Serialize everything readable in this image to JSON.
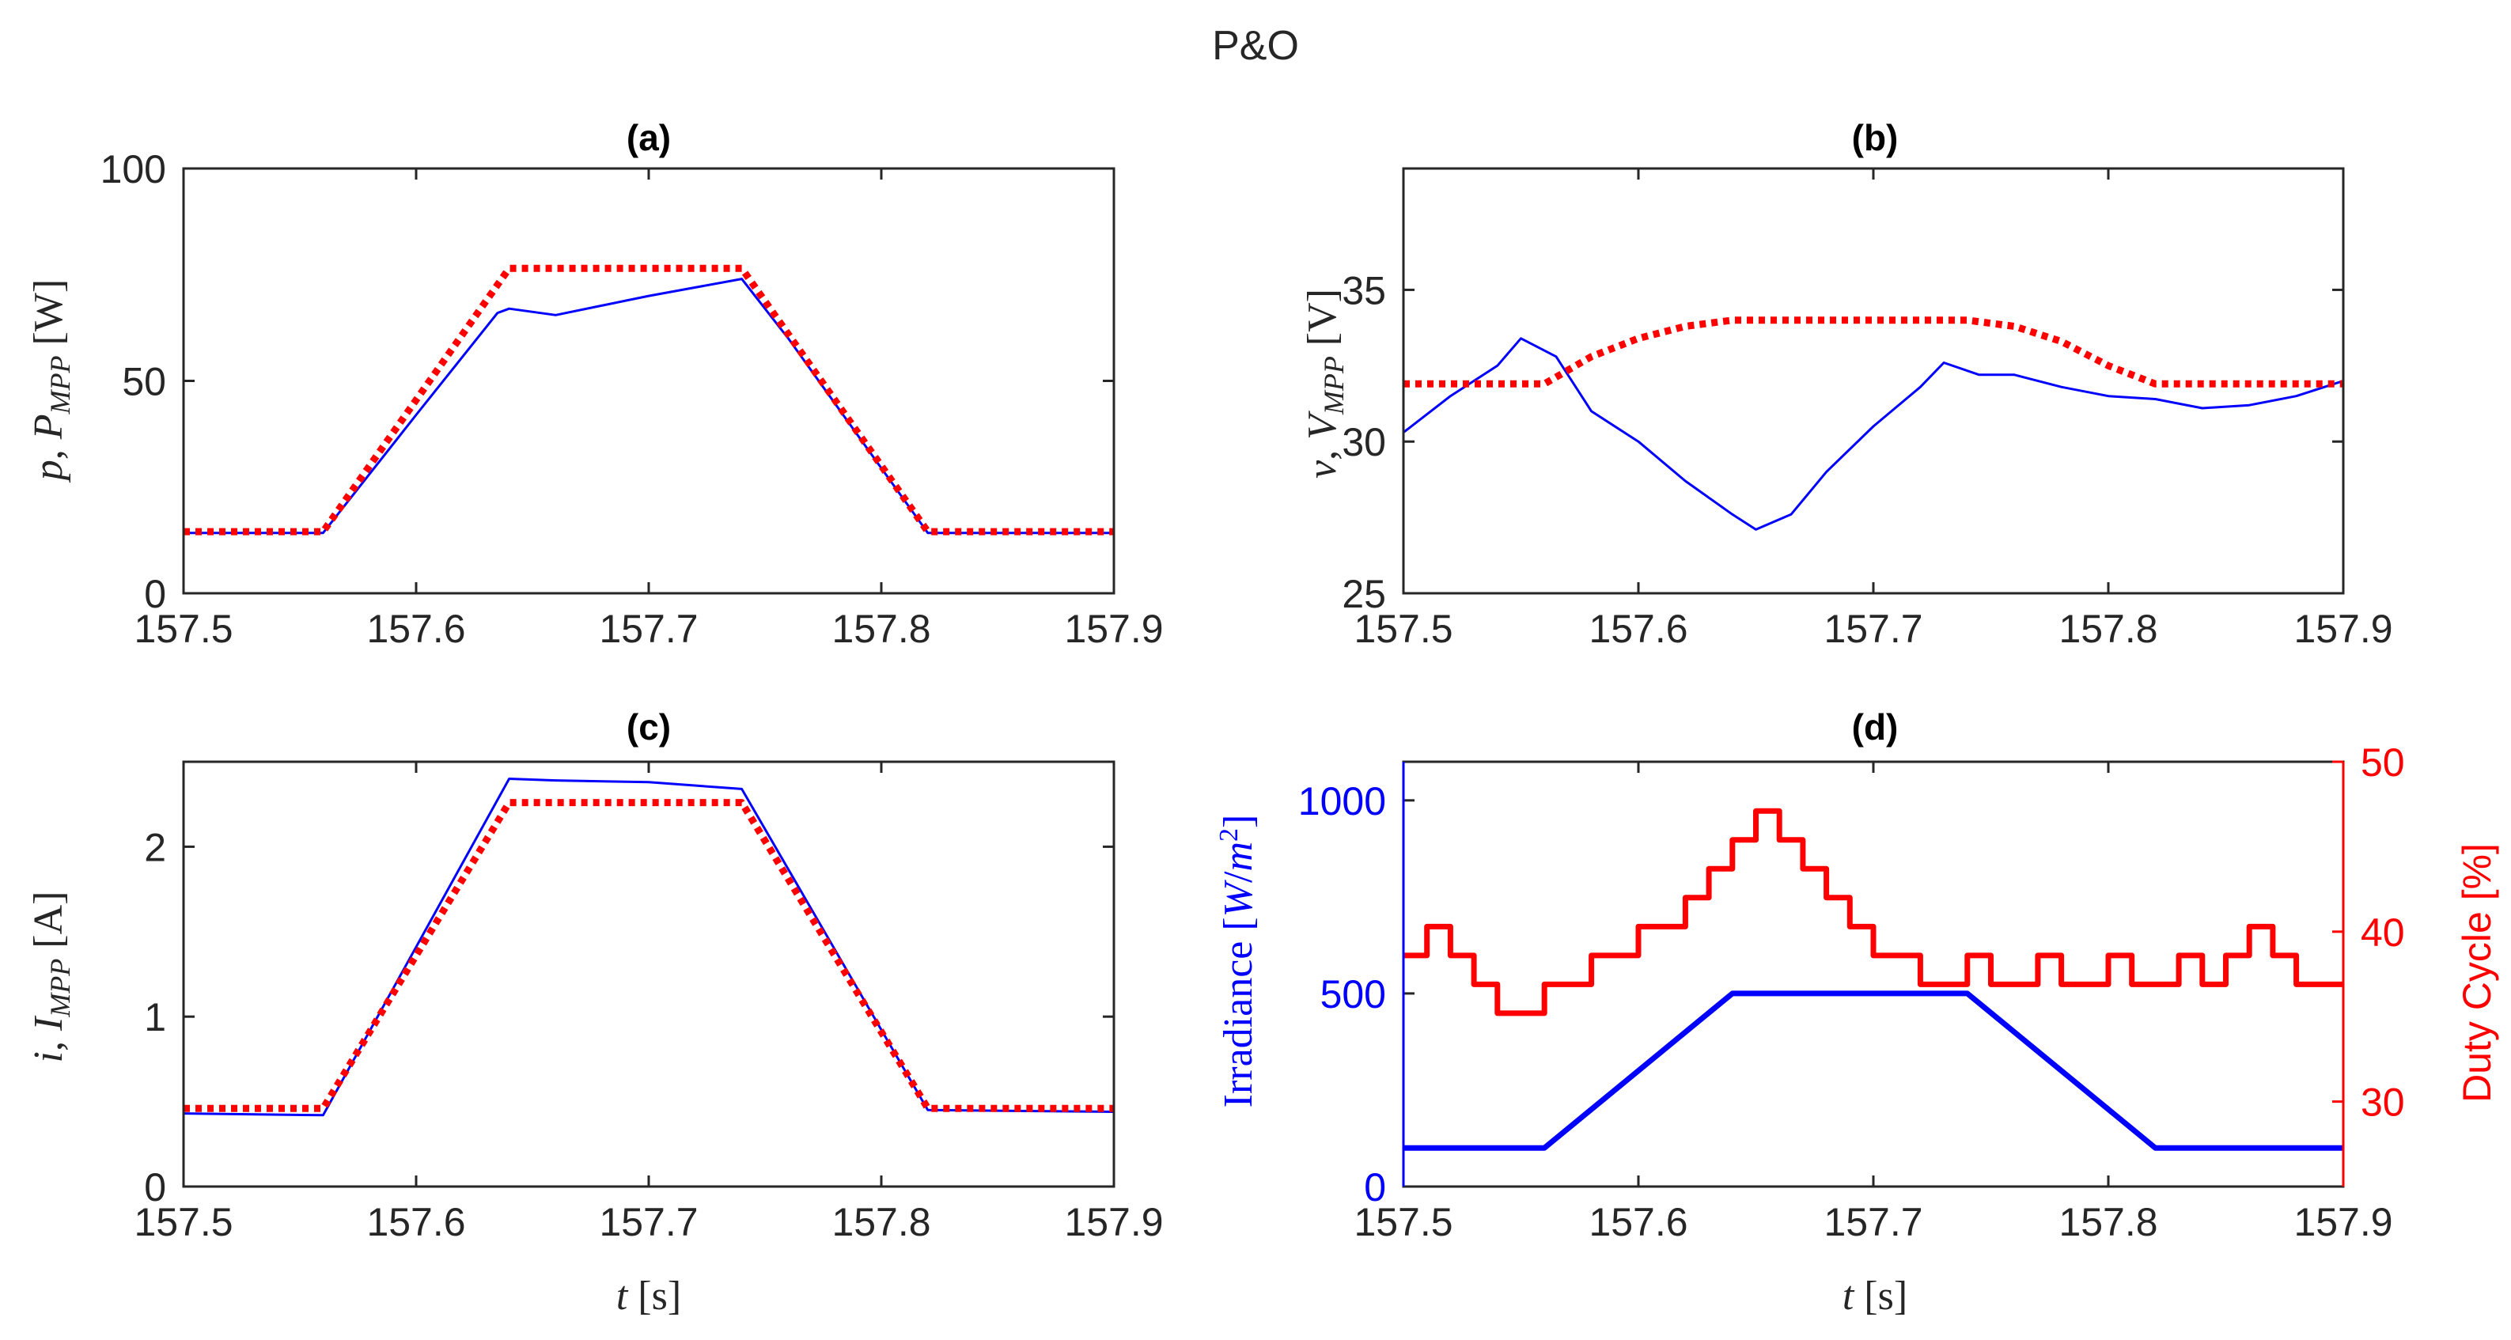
{
  "figure_title": "P&O",
  "colors": {
    "measured": "#0000ff",
    "mpp": "#ff0000",
    "axis": "#262626"
  },
  "chart_data": [
    {
      "panel": "(a)",
      "type": "line",
      "title": "(a)",
      "ylabel": "p, P_MPP [W]",
      "xlabel": "",
      "xlim": [
        157.5,
        157.9
      ],
      "ylim": [
        0,
        100
      ],
      "xticks": [
        157.5,
        157.6,
        157.7,
        157.8,
        157.9
      ],
      "yticks": [
        0,
        50,
        100
      ],
      "series": [
        {
          "name": "p",
          "color": "#0000ff",
          "x": [
            157.5,
            157.56,
            157.6,
            157.635,
            157.64,
            157.66,
            157.7,
            157.74,
            157.76,
            157.82,
            157.9
          ],
          "y": [
            14.2,
            14.2,
            42,
            66,
            67,
            65.5,
            70,
            74,
            60,
            14.2,
            14.2
          ]
        },
        {
          "name": "P_MPP",
          "color": "#ff0000",
          "dashed": true,
          "x": [
            157.5,
            157.56,
            157.64,
            157.74,
            157.82,
            157.9
          ],
          "y": [
            14.5,
            14.5,
            76.5,
            76.5,
            14.5,
            14.5
          ]
        }
      ]
    },
    {
      "panel": "(b)",
      "type": "line",
      "title": "(b)",
      "ylabel": "v, V_MPP [V]",
      "xlabel": "",
      "xlim": [
        157.5,
        157.9
      ],
      "ylim": [
        25,
        39
      ],
      "xticks": [
        157.5,
        157.6,
        157.7,
        157.8,
        157.9
      ],
      "yticks": [
        25,
        30,
        35
      ],
      "series": [
        {
          "name": "v",
          "color": "#0000ff",
          "x": [
            157.5,
            157.52,
            157.54,
            157.55,
            157.565,
            157.58,
            157.6,
            157.62,
            157.64,
            157.65,
            157.665,
            157.68,
            157.7,
            157.72,
            157.73,
            157.745,
            157.76,
            157.78,
            157.8,
            157.82,
            157.84,
            157.86,
            157.88,
            157.9
          ],
          "y": [
            30.3,
            31.5,
            32.5,
            33.4,
            32.8,
            31.0,
            30.0,
            28.7,
            27.6,
            27.1,
            27.6,
            29.0,
            30.5,
            31.8,
            32.6,
            32.2,
            32.2,
            31.8,
            31.5,
            31.4,
            31.1,
            31.2,
            31.5,
            32.0
          ]
        },
        {
          "name": "V_MPP",
          "color": "#ff0000",
          "dashed": true,
          "x": [
            157.5,
            157.56,
            157.58,
            157.6,
            157.62,
            157.64,
            157.7,
            157.74,
            157.76,
            157.78,
            157.8,
            157.82,
            157.9
          ],
          "y": [
            31.9,
            31.9,
            32.8,
            33.4,
            33.8,
            34.0,
            34.0,
            34.0,
            33.8,
            33.3,
            32.5,
            31.9,
            31.9
          ]
        }
      ]
    },
    {
      "panel": "(c)",
      "type": "line",
      "title": "(c)",
      "ylabel": "i, I_MPP [A]",
      "xlabel": "t [s]",
      "xlim": [
        157.5,
        157.9
      ],
      "ylim": [
        0,
        2.5
      ],
      "xticks": [
        157.5,
        157.6,
        157.7,
        157.8,
        157.9
      ],
      "yticks": [
        0,
        1,
        2
      ],
      "series": [
        {
          "name": "i",
          "color": "#0000ff",
          "x": [
            157.5,
            157.56,
            157.64,
            157.66,
            157.7,
            157.74,
            157.82,
            157.9
          ],
          "y": [
            0.43,
            0.42,
            2.4,
            2.39,
            2.38,
            2.34,
            0.45,
            0.44
          ]
        },
        {
          "name": "I_MPP",
          "color": "#ff0000",
          "dashed": true,
          "x": [
            157.5,
            157.56,
            157.64,
            157.74,
            157.82,
            157.9
          ],
          "y": [
            0.46,
            0.46,
            2.26,
            2.26,
            0.46,
            0.46
          ]
        }
      ]
    },
    {
      "panel": "(d)",
      "type": "line",
      "title": "(d)",
      "ylabel": "Irradiance [W/m^2]",
      "y2label": "Duty Cycle [%]",
      "xlabel": "t [s]",
      "xlim": [
        157.5,
        157.9
      ],
      "ylim": [
        0,
        1100
      ],
      "y2lim": [
        25,
        50
      ],
      "xticks": [
        157.5,
        157.6,
        157.7,
        157.8,
        157.9
      ],
      "yticks": [
        0,
        500,
        1000
      ],
      "y2ticks": [
        30,
        40,
        50
      ],
      "series": [
        {
          "name": "Irradiance",
          "axis": "left",
          "color": "#0000ff",
          "x": [
            157.5,
            157.56,
            157.64,
            157.74,
            157.82,
            157.9
          ],
          "y": [
            100,
            100,
            500,
            500,
            100,
            100
          ]
        },
        {
          "name": "Duty Cycle",
          "axis": "right",
          "color": "#ff0000",
          "step": true,
          "x": [
            157.5,
            157.51,
            157.52,
            157.53,
            157.54,
            157.55,
            157.56,
            157.57,
            157.58,
            157.59,
            157.6,
            157.61,
            157.62,
            157.63,
            157.64,
            157.65,
            157.66,
            157.67,
            157.68,
            157.69,
            157.7,
            157.71,
            157.72,
            157.73,
            157.74,
            157.75,
            157.76,
            157.77,
            157.78,
            157.79,
            157.8,
            157.81,
            157.82,
            157.83,
            157.84,
            157.85,
            157.86,
            157.87,
            157.88,
            157.89,
            157.9
          ],
          "y": [
            38.6,
            40.3,
            38.6,
            36.9,
            35.2,
            35.2,
            36.9,
            36.9,
            38.6,
            38.6,
            40.3,
            40.3,
            42.0,
            43.7,
            45.4,
            47.1,
            45.4,
            43.7,
            42.0,
            40.3,
            38.6,
            38.6,
            36.9,
            36.9,
            38.6,
            36.9,
            36.9,
            38.6,
            36.9,
            36.9,
            38.6,
            36.9,
            36.9,
            38.6,
            36.9,
            38.6,
            40.3,
            38.6,
            36.9,
            36.9,
            36.9
          ]
        }
      ]
    }
  ]
}
